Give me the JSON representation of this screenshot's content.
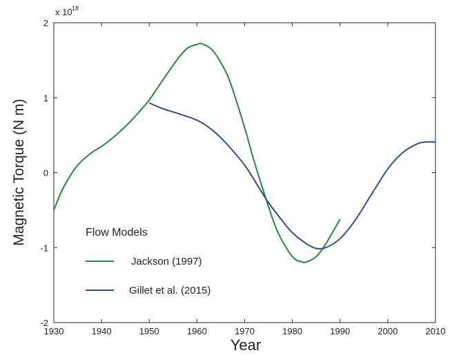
{
  "chart_data": {
    "type": "line",
    "xlabel": "Year",
    "ylabel": "Magnetic Torque  (N m)",
    "y_multiplier_label": "x 10",
    "y_multiplier_exponent": "18",
    "xlim": [
      1930,
      2010
    ],
    "ylim": [
      -2,
      2
    ],
    "x_ticks": [
      1930,
      1940,
      1950,
      1960,
      1970,
      1980,
      1990,
      2000,
      2010
    ],
    "y_ticks": [
      -2,
      -1,
      0,
      1,
      2
    ],
    "grid": false,
    "legend": {
      "title": "Flow Models",
      "placement": "bottom-left"
    },
    "series": [
      {
        "name": "Jackson (1997)",
        "color": "#1e8a3c",
        "x": [
          1930,
          1932,
          1935,
          1938,
          1940,
          1943,
          1946,
          1948,
          1950,
          1953,
          1956,
          1958,
          1960,
          1961,
          1963,
          1965,
          1967,
          1970,
          1972,
          1975,
          1977,
          1980,
          1982,
          1983,
          1985,
          1987,
          1990
        ],
        "y": [
          -0.5,
          -0.2,
          0.1,
          0.27,
          0.35,
          0.5,
          0.68,
          0.82,
          0.97,
          1.25,
          1.52,
          1.66,
          1.71,
          1.72,
          1.65,
          1.47,
          1.2,
          0.6,
          0.15,
          -0.45,
          -0.8,
          -1.12,
          -1.19,
          -1.19,
          -1.12,
          -0.95,
          -0.62
        ]
      },
      {
        "name": "Gillet et al. (2015)",
        "color": "#2e4a9a",
        "x": [
          1950,
          1953,
          1956,
          1960,
          1963,
          1966,
          1970,
          1973,
          1975,
          1978,
          1980,
          1983,
          1985,
          1987,
          1990,
          1993,
          1996,
          2000,
          2003,
          2006,
          2008,
          2010
        ],
        "y": [
          0.93,
          0.85,
          0.79,
          0.7,
          0.58,
          0.4,
          0.1,
          -0.2,
          -0.4,
          -0.65,
          -0.8,
          -0.95,
          -1.01,
          -1.0,
          -0.88,
          -0.65,
          -0.35,
          0.05,
          0.26,
          0.38,
          0.41,
          0.41
        ]
      }
    ]
  }
}
